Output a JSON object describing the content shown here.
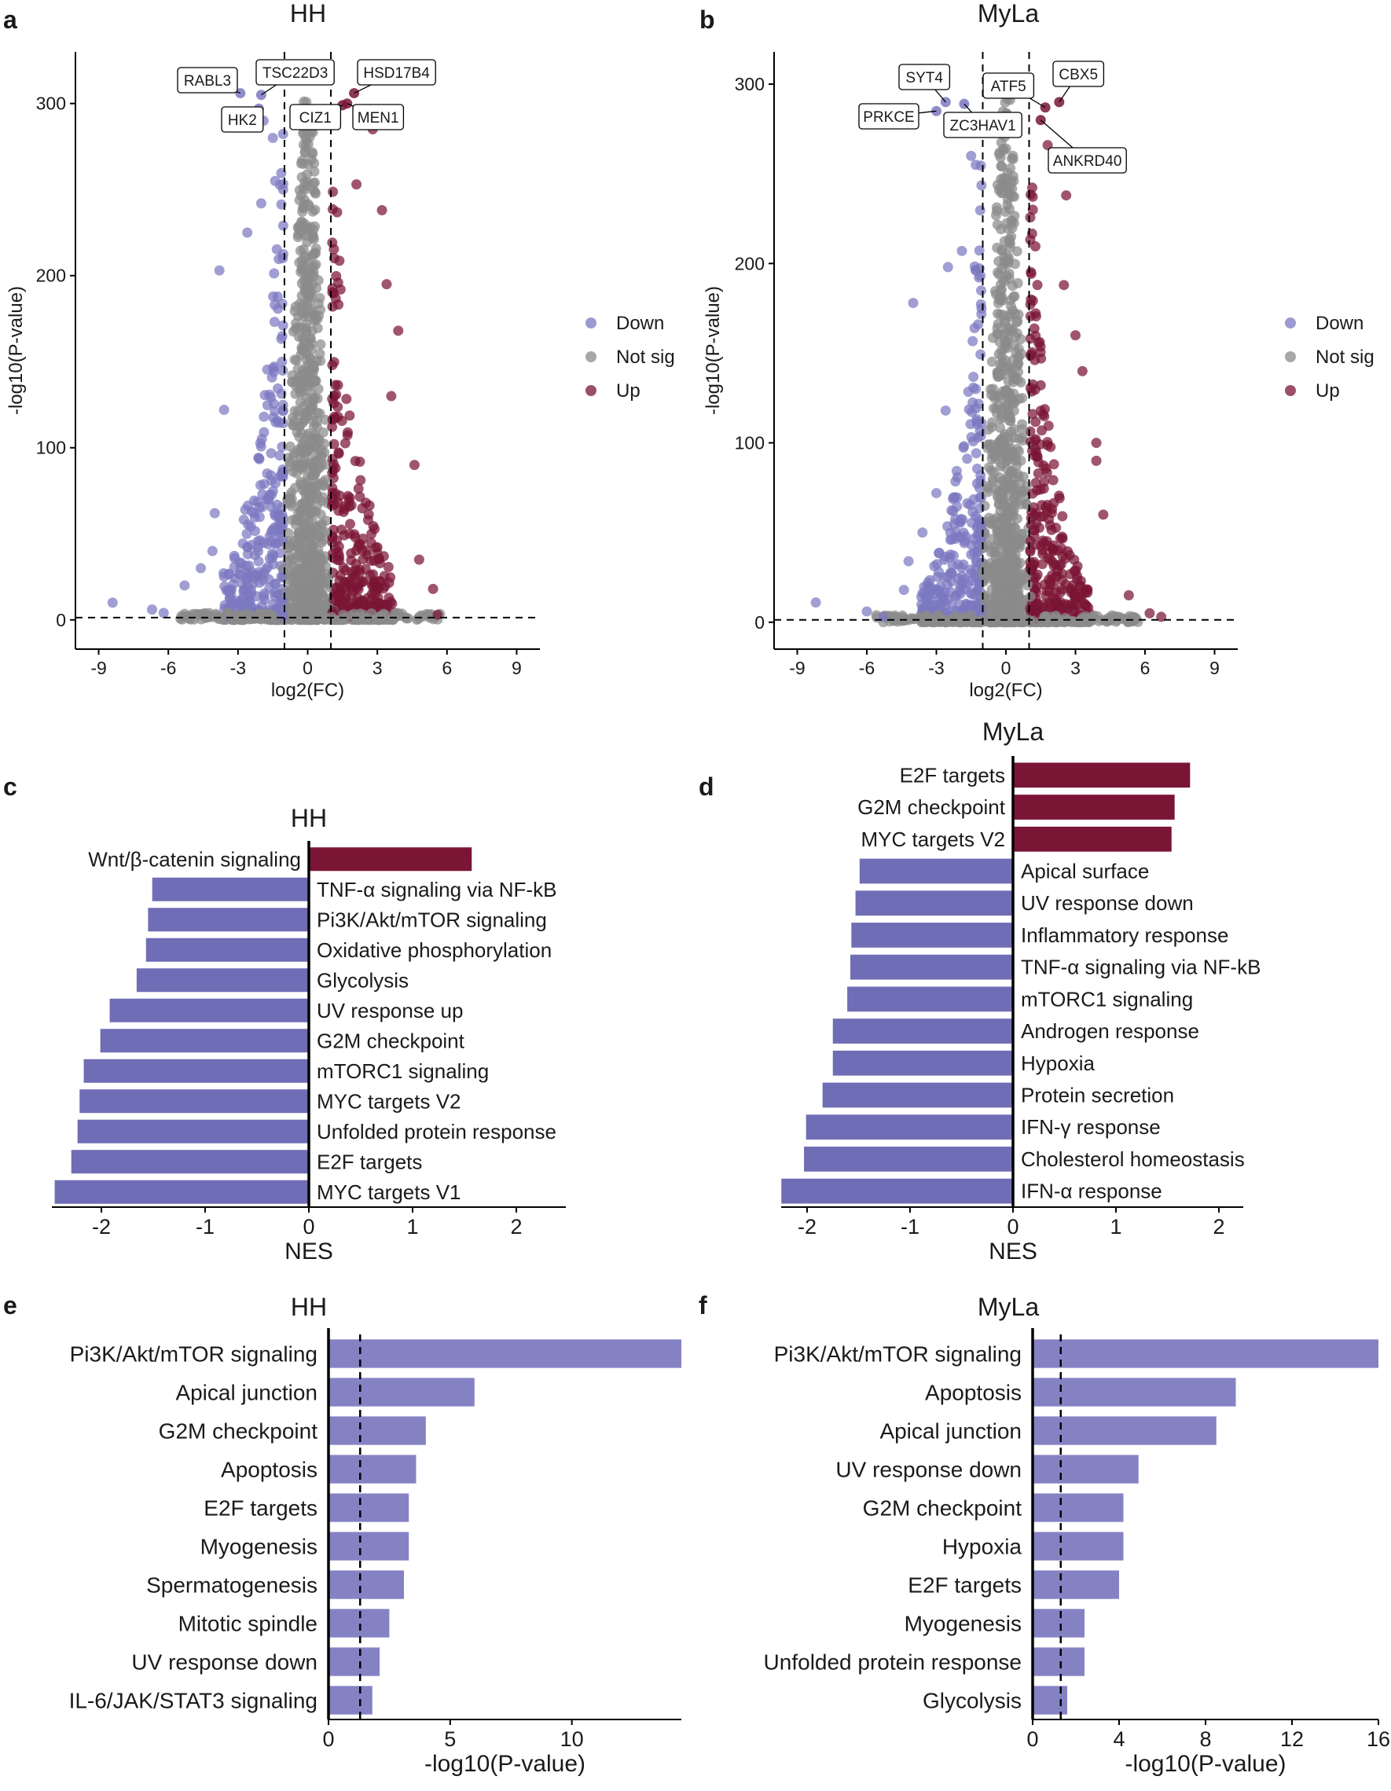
{
  "colors": {
    "down": "#7b78c0",
    "notsig": "#8a8a8a",
    "up": "#7a1535",
    "bar_ora": "#8582c4",
    "bar_down": "#6f6db5",
    "bar_up": "#7b1535"
  },
  "chart_data": [
    {
      "id": "a",
      "panel_label": "a",
      "type": "scatter",
      "title": "HH",
      "xlabel": "log2(FC)",
      "ylabel": "-log10(P-value)",
      "xlim": [
        -10,
        10
      ],
      "ylim": [
        -17,
        330
      ],
      "xticks": [
        -9,
        -6,
        -3,
        0,
        3,
        6,
        9
      ],
      "yticks": [
        0,
        100,
        200,
        300
      ],
      "thresholds": {
        "x": [
          -1,
          1
        ],
        "y": [
          1.3
        ]
      },
      "legend": {
        "position": "right",
        "entries": [
          "Down",
          "Not sig",
          "Up"
        ]
      },
      "labeled_points": [
        {
          "gene": "RABL3",
          "x": -2.9,
          "y": 306,
          "group": "down"
        },
        {
          "gene": "TSC22D3",
          "x": -2.0,
          "y": 305,
          "group": "down"
        },
        {
          "gene": "HK2",
          "x": -2.1,
          "y": 297,
          "group": "down"
        },
        {
          "gene": "CIZ1",
          "x": 1.5,
          "y": 299,
          "group": "up"
        },
        {
          "gene": "HSD17B4",
          "x": 2.0,
          "y": 306,
          "group": "up"
        },
        {
          "gene": "MEN1",
          "x": 1.7,
          "y": 300,
          "group": "up"
        }
      ],
      "outliers": [
        {
          "x": -8.4,
          "y": 10,
          "group": "down"
        },
        {
          "x": -6.7,
          "y": 6,
          "group": "down"
        },
        {
          "x": -6.2,
          "y": 4,
          "group": "down"
        },
        {
          "x": -5.3,
          "y": 20,
          "group": "down"
        },
        {
          "x": -4.6,
          "y": 30,
          "group": "down"
        },
        {
          "x": -4.1,
          "y": 40,
          "group": "down"
        },
        {
          "x": -4.0,
          "y": 62,
          "group": "down"
        },
        {
          "x": -3.6,
          "y": 122,
          "group": "down"
        },
        {
          "x": -3.8,
          "y": 203,
          "group": "down"
        },
        {
          "x": -2.6,
          "y": 225,
          "group": "down"
        },
        {
          "x": -2.0,
          "y": 242,
          "group": "down"
        },
        {
          "x": -1.4,
          "y": 255,
          "group": "down"
        },
        {
          "x": -1.5,
          "y": 280,
          "group": "down"
        },
        {
          "x": -1.9,
          "y": 290,
          "group": "down"
        },
        {
          "x": 2.8,
          "y": 285,
          "group": "up"
        },
        {
          "x": 2.1,
          "y": 253,
          "group": "up"
        },
        {
          "x": 3.2,
          "y": 238,
          "group": "up"
        },
        {
          "x": 3.4,
          "y": 195,
          "group": "up"
        },
        {
          "x": 3.9,
          "y": 168,
          "group": "up"
        },
        {
          "x": 3.6,
          "y": 130,
          "group": "up"
        },
        {
          "x": 4.6,
          "y": 90,
          "group": "up"
        },
        {
          "x": 4.8,
          "y": 35,
          "group": "up"
        },
        {
          "x": 5.4,
          "y": 18,
          "group": "up"
        },
        {
          "x": 5.6,
          "y": 3,
          "group": "up"
        }
      ]
    },
    {
      "id": "b",
      "panel_label": "b",
      "type": "scatter",
      "title": "MyLa",
      "xlabel": "log2(FC)",
      "ylabel": "-log10(P-value)",
      "xlim": [
        -10,
        10
      ],
      "ylim": [
        -15,
        318
      ],
      "xticks": [
        -9,
        -6,
        -3,
        0,
        3,
        6,
        9
      ],
      "yticks": [
        0,
        100,
        200,
        300
      ],
      "thresholds": {
        "x": [
          -1,
          1
        ],
        "y": [
          1.3
        ]
      },
      "legend": {
        "position": "right",
        "entries": [
          "Down",
          "Not sig",
          "Up"
        ]
      },
      "labeled_points": [
        {
          "gene": "SYT4",
          "x": -2.6,
          "y": 290,
          "group": "down"
        },
        {
          "gene": "PRKCE",
          "x": -3.0,
          "y": 285,
          "group": "down"
        },
        {
          "gene": "ZC3HAV1",
          "x": -1.8,
          "y": 289,
          "group": "down"
        },
        {
          "gene": "ATF5",
          "x": 1.7,
          "y": 287,
          "group": "up"
        },
        {
          "gene": "CBX5",
          "x": 2.3,
          "y": 290,
          "group": "up"
        },
        {
          "gene": "ANKRD40",
          "x": 1.5,
          "y": 280,
          "group": "up"
        }
      ],
      "outliers": [
        {
          "x": -8.2,
          "y": 11,
          "group": "down"
        },
        {
          "x": -6.0,
          "y": 6,
          "group": "down"
        },
        {
          "x": -5.3,
          "y": 3,
          "group": "down"
        },
        {
          "x": -4.4,
          "y": 18,
          "group": "down"
        },
        {
          "x": -4.2,
          "y": 34,
          "group": "down"
        },
        {
          "x": -3.6,
          "y": 50,
          "group": "down"
        },
        {
          "x": -3.0,
          "y": 72,
          "group": "down"
        },
        {
          "x": -2.6,
          "y": 118,
          "group": "down"
        },
        {
          "x": -4.0,
          "y": 178,
          "group": "down"
        },
        {
          "x": -2.5,
          "y": 198,
          "group": "down"
        },
        {
          "x": -1.9,
          "y": 207,
          "group": "down"
        },
        {
          "x": -1.3,
          "y": 255,
          "group": "down"
        },
        {
          "x": -1.5,
          "y": 260,
          "group": "down"
        },
        {
          "x": 2.6,
          "y": 238,
          "group": "up"
        },
        {
          "x": 2.5,
          "y": 188,
          "group": "up"
        },
        {
          "x": 3.0,
          "y": 160,
          "group": "up"
        },
        {
          "x": 3.3,
          "y": 140,
          "group": "up"
        },
        {
          "x": 3.9,
          "y": 100,
          "group": "up"
        },
        {
          "x": 3.9,
          "y": 90,
          "group": "up"
        },
        {
          "x": 4.2,
          "y": 60,
          "group": "up"
        },
        {
          "x": 5.3,
          "y": 15,
          "group": "up"
        },
        {
          "x": 6.2,
          "y": 5,
          "group": "up"
        },
        {
          "x": 6.7,
          "y": 3,
          "group": "up"
        },
        {
          "x": 1.8,
          "y": 266,
          "group": "up"
        }
      ]
    },
    {
      "id": "c",
      "panel_label": "c",
      "type": "bar",
      "orientation": "horizontal",
      "title": "HH",
      "xlabel": "NES",
      "xlim": [
        -2.45,
        2.45
      ],
      "xticks": [
        -2,
        -1,
        0,
        1,
        2
      ],
      "categories": [
        "Wnt/β-catenin signaling",
        "TNF-α signaling via NF-kB",
        "Pi3K/Akt/mTOR signaling",
        "Oxidative phosphorylation",
        "Glycolysis",
        "UV response up",
        "G2M checkpoint",
        "mTORC1 signaling",
        "MYC targets V2",
        "Unfolded protein response",
        "E2F targets",
        "MYC targets V1"
      ],
      "values": [
        1.57,
        -1.51,
        -1.55,
        -1.57,
        -1.66,
        -1.92,
        -2.01,
        -2.17,
        -2.21,
        -2.23,
        -2.29,
        -2.45
      ]
    },
    {
      "id": "d",
      "panel_label": "d",
      "type": "bar",
      "orientation": "horizontal",
      "title": "MyLa",
      "xlabel": "NES",
      "xlim": [
        -2.25,
        2.25
      ],
      "xticks": [
        -2,
        -1,
        0,
        1,
        2
      ],
      "categories": [
        "E2F targets",
        "G2M checkpoint",
        "MYC targets V2",
        "Apical surface",
        "UV response down",
        "Inflammatory response",
        "TNF-α signaling via NF-kB",
        "mTORC1 signaling",
        "Androgen response",
        "Hypoxia",
        "Protein secretion",
        "IFN-γ response",
        "Cholesterol homeostasis",
        "IFN-α response"
      ],
      "values": [
        1.72,
        1.57,
        1.54,
        -1.49,
        -1.53,
        -1.57,
        -1.58,
        -1.61,
        -1.75,
        -1.75,
        -1.85,
        -2.01,
        -2.03,
        -2.25
      ]
    },
    {
      "id": "e",
      "panel_label": "e",
      "type": "bar",
      "orientation": "horizontal",
      "title": "HH",
      "xlabel": "-log10(P-value)",
      "xlim": [
        0,
        14.5
      ],
      "xticks": [
        0,
        5,
        10
      ],
      "threshold": 1.3,
      "categories": [
        "Pi3K/Akt/mTOR signaling",
        "Apical junction",
        "G2M checkpoint",
        "Apoptosis",
        "E2F targets",
        "Myogenesis",
        "Spermatogenesis",
        "Mitotic spindle",
        "UV response down",
        "IL-6/JAK/STAT3 signaling"
      ],
      "values": [
        14.5,
        6.0,
        4.0,
        3.6,
        3.3,
        3.3,
        3.1,
        2.5,
        2.1,
        1.8
      ]
    },
    {
      "id": "f",
      "panel_label": "f",
      "type": "bar",
      "orientation": "horizontal",
      "title": "MyLa",
      "xlabel": "-log10(P-value)",
      "xlim": [
        0,
        16
      ],
      "xticks": [
        0,
        4,
        8,
        12,
        16
      ],
      "threshold": 1.3,
      "categories": [
        "Pi3K/Akt/mTOR signaling",
        "Apoptosis",
        "Apical junction",
        "UV response down",
        "G2M checkpoint",
        "Hypoxia",
        "E2F targets",
        "Myogenesis",
        "Unfolded protein response",
        "Glycolysis"
      ],
      "values": [
        16.0,
        9.4,
        8.5,
        4.9,
        4.2,
        4.2,
        4.0,
        2.4,
        2.4,
        1.6
      ]
    }
  ]
}
